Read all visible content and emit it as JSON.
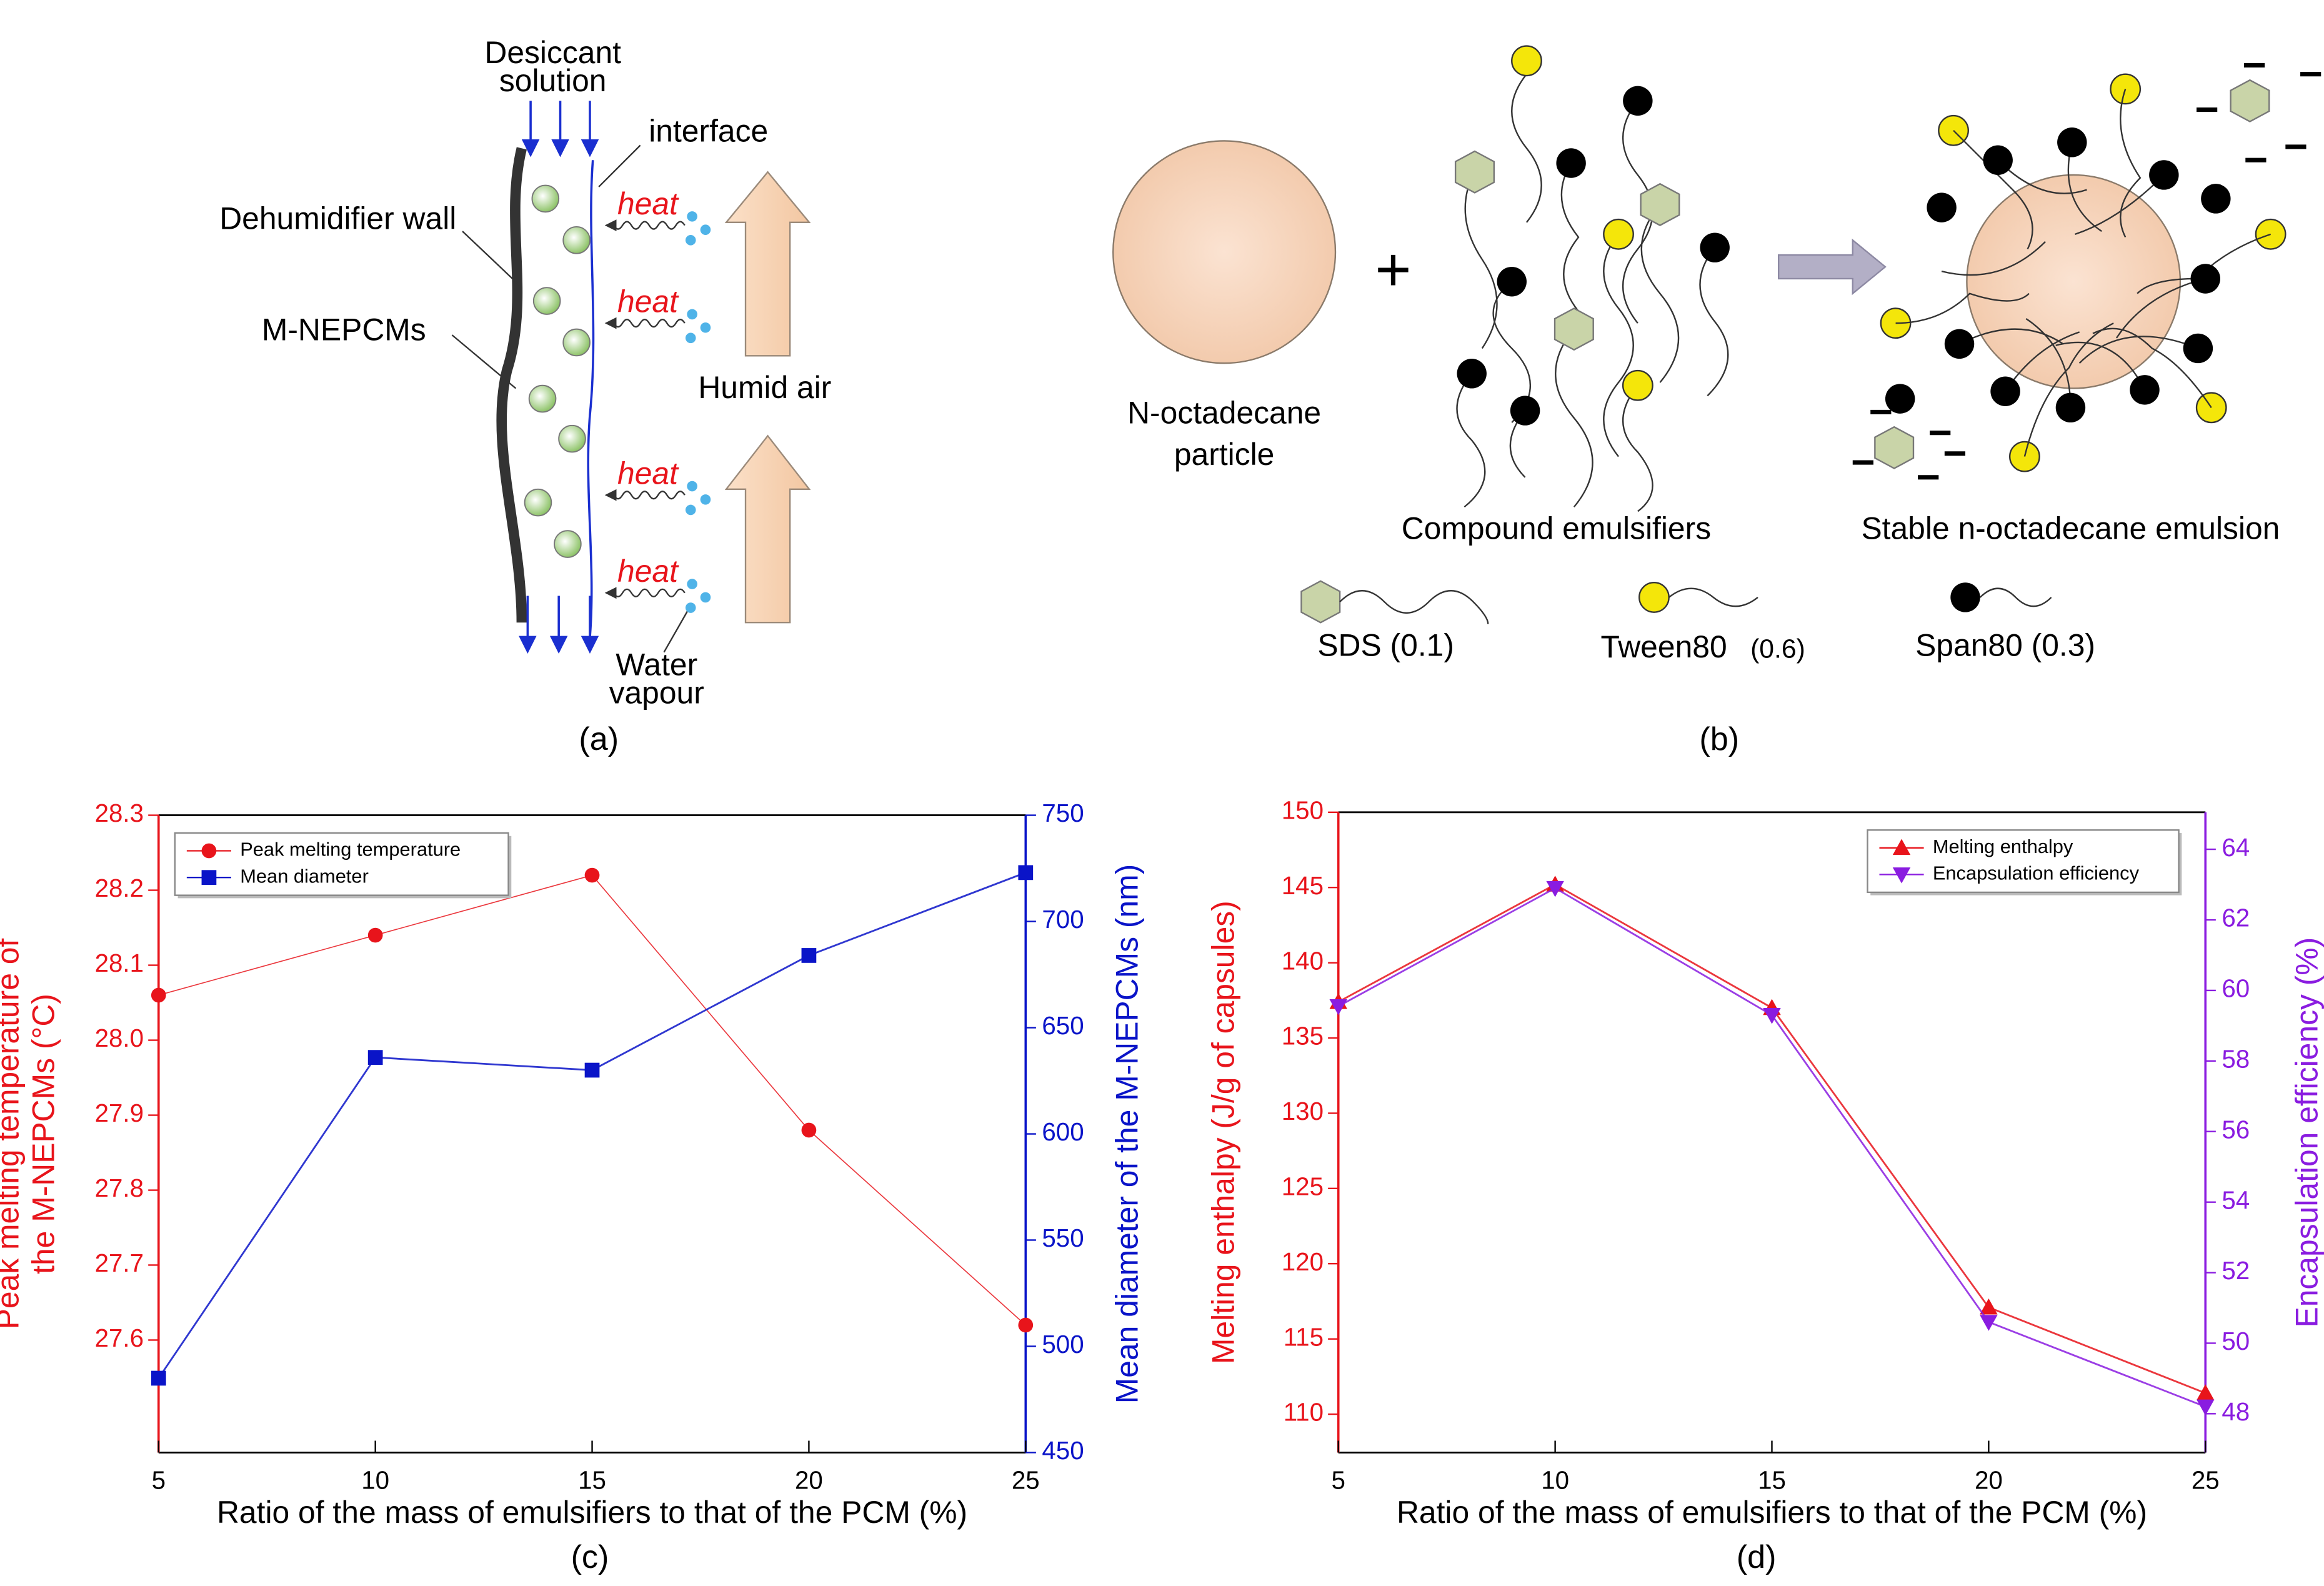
{
  "panel_a": {
    "desiccant": [
      "Desiccant",
      "solution"
    ],
    "interface": "interface",
    "wall": "Dehumidifier wall",
    "capsules": "M-NEPCMs",
    "heat": [
      "heat",
      "heat",
      "heat",
      "heat"
    ],
    "air": "Humid air",
    "vapour": [
      "Water",
      "vapour"
    ],
    "label": "(a)"
  },
  "panel_b": {
    "particle": [
      "N-octadecane",
      "particle"
    ],
    "plus": "+",
    "emulsifiers": "Compound emulsifiers",
    "emulsion": "Stable n-octadecane emulsion",
    "sds": "SDS (0.1)",
    "tween": "Tween80",
    "tween_ratio": "(0.6)",
    "span": "Span80 (0.3)",
    "label": "(b)"
  },
  "chart_data": [
    {
      "type": "line",
      "label": "(c)",
      "xlabel": "Ratio of the mass of emulsifiers to that of the PCM (%)",
      "ylabel": [
        "Peak melting temperature of",
        "the M-NEPCMs (°C)"
      ],
      "y2label": "Mean diameter of the M-NEPCMs (nm)",
      "x": [
        5,
        10,
        15,
        20,
        25
      ],
      "xlim": [
        5,
        25
      ],
      "xticks": [
        5,
        10,
        15,
        20,
        25
      ],
      "ylim": [
        27.45,
        28.3
      ],
      "yticks": [
        27.6,
        27.7,
        27.8,
        27.9,
        {
          "value": 28,
          "label": "28.0"
        },
        28.1,
        28.2,
        28.3
      ],
      "y2lim": [
        450,
        750
      ],
      "y2ticks": [
        450,
        500,
        550,
        600,
        650,
        700,
        750
      ],
      "legend": "upper left",
      "series": [
        {
          "name": "Peak melting temperature",
          "color": "#e8141b",
          "marker": "circle",
          "values": [
            28.06,
            28.14,
            28.22,
            27.88,
            27.62
          ]
        },
        {
          "name": "Mean diameter",
          "color": "#0a14c8",
          "marker": "square",
          "axis": "y2",
          "values": [
            485,
            636,
            630,
            684,
            723
          ]
        }
      ]
    },
    {
      "type": "line",
      "label": "(d)",
      "xlabel": "Ratio of the mass of emulsifiers to that of the PCM (%)",
      "ylabel": [
        "Melting enthalpy (J/g of capsules)"
      ],
      "y2label": "Encapsulation efficiency (%)",
      "x": [
        5,
        10,
        15,
        20,
        25
      ],
      "xlim": [
        5,
        25
      ],
      "xticks": [
        5,
        10,
        15,
        20,
        25
      ],
      "ylim": [
        107.45,
        150
      ],
      "yticks": [
        110,
        115,
        120,
        125,
        130,
        135,
        140,
        145,
        150
      ],
      "y2lim": [
        46.9,
        65.05
      ],
      "y2ticks": [
        48,
        50,
        52,
        54,
        56,
        58,
        60,
        62,
        64
      ],
      "legend": "upper right",
      "series": [
        {
          "name": "Melting enthalpy",
          "color": "#e8141b",
          "marker": "triangle-up",
          "values": [
            137.4,
            145.2,
            137,
            117.1,
            111.4
          ]
        },
        {
          "name": "Encapsulation efficiency",
          "color": "#8a1ce0",
          "marker": "triangle-down",
          "axis": "y2",
          "values": [
            59.55,
            62.9,
            59.3,
            50.6,
            48.2
          ]
        }
      ]
    }
  ]
}
